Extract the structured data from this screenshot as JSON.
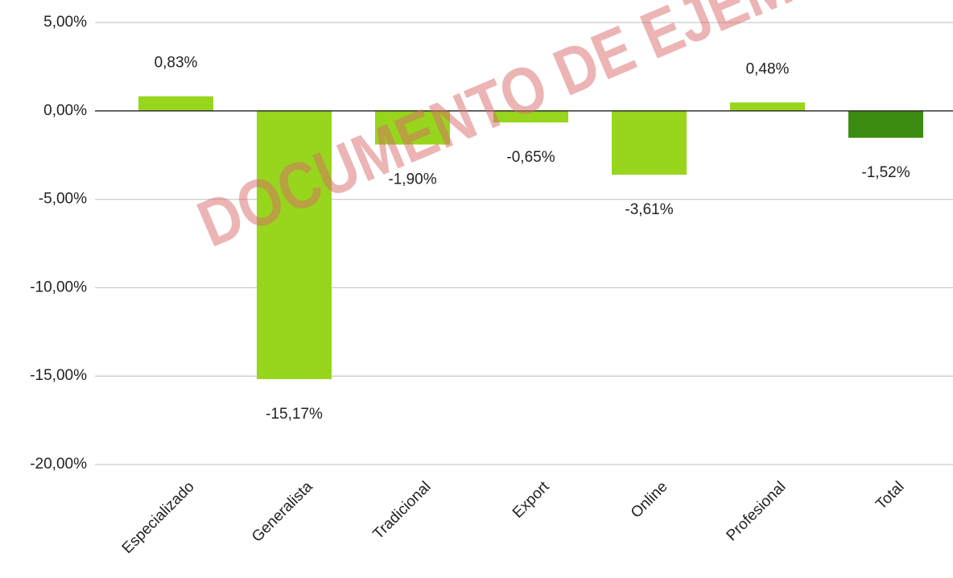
{
  "chart_data": {
    "type": "bar",
    "categories": [
      "Especializado",
      "Generalista",
      "Tradicional",
      "Export",
      "Online",
      "Profesional",
      "Total"
    ],
    "values": [
      0.83,
      -15.17,
      -1.9,
      -0.65,
      -3.61,
      0.48,
      -1.52
    ],
    "value_labels": [
      "0,83%",
      "-15,17%",
      "-1,90%",
      "-0,65%",
      "-3,61%",
      "0,48%",
      "-1,52%"
    ],
    "colors": [
      "#97d61c",
      "#97d61c",
      "#97d61c",
      "#97d61c",
      "#97d61c",
      "#97d61c",
      "#3d8c12"
    ],
    "ylim": [
      -20,
      5
    ],
    "yticks": [
      {
        "value": 5,
        "label": "5,00%"
      },
      {
        "value": 0,
        "label": "0,00%"
      },
      {
        "value": -5,
        "label": "-5,00%"
      },
      {
        "value": -10,
        "label": "-10,00%"
      },
      {
        "value": -15,
        "label": "-15,00%"
      },
      {
        "value": -20,
        "label": "-20,00%"
      }
    ],
    "grid": true,
    "watermark": "DOCUMENTO DE EJEM"
  }
}
